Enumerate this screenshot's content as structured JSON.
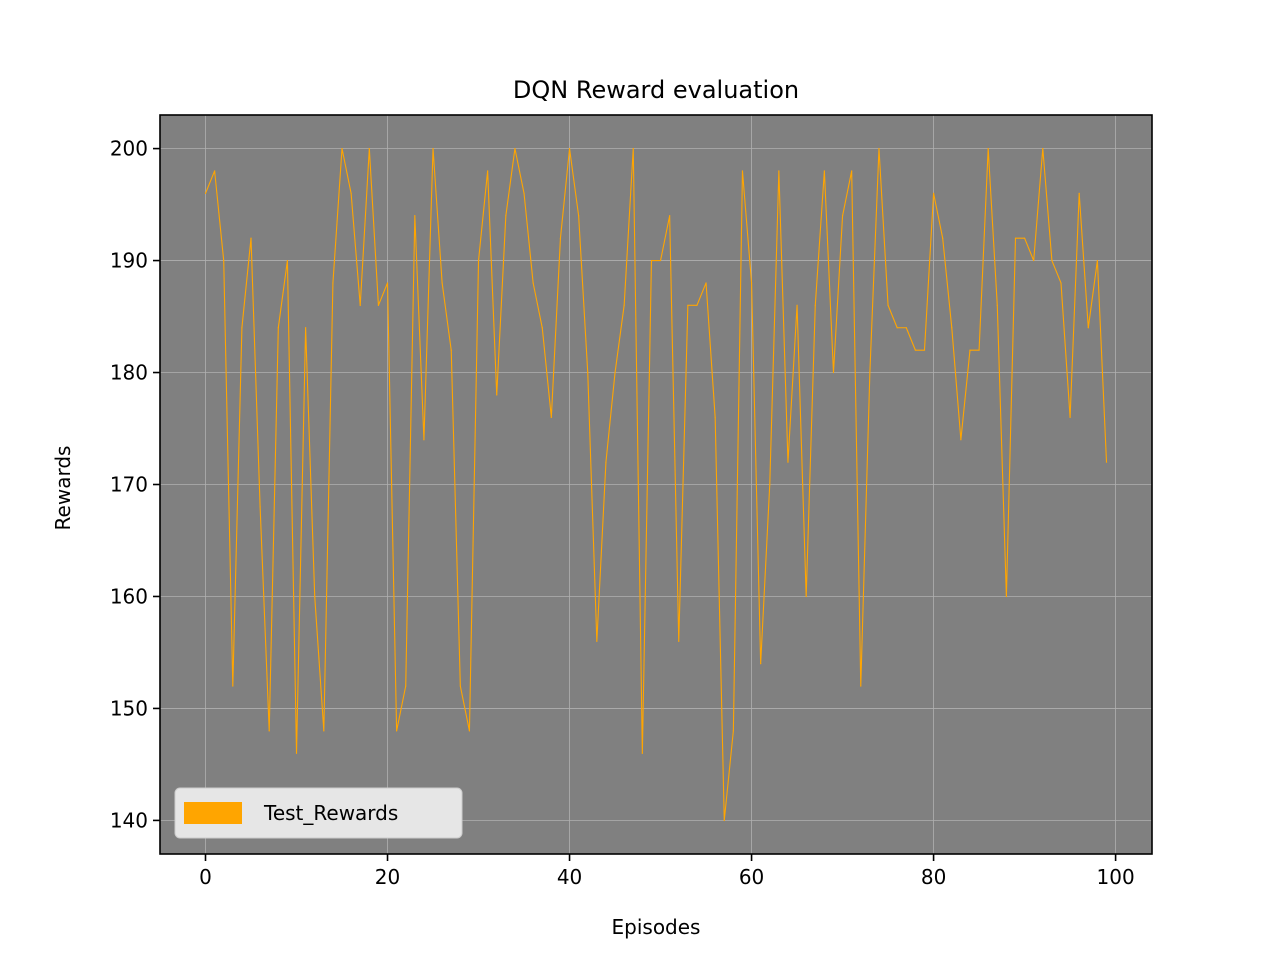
{
  "chart_data": {
    "type": "line",
    "title": "DQN Reward evaluation",
    "xlabel": "Episodes",
    "ylabel": "Rewards",
    "xlim": [
      -5,
      104
    ],
    "ylim": [
      137,
      203
    ],
    "xticks": [
      0,
      20,
      40,
      60,
      80,
      100
    ],
    "yticks": [
      140,
      150,
      160,
      170,
      180,
      190,
      200
    ],
    "grid": true,
    "legend_position": "lower-left",
    "colors": {
      "line": "#ffa500",
      "plot_background": "#808080",
      "grid": "#b0b0b0"
    },
    "series": [
      {
        "name": "Test_Rewards",
        "x": [
          0,
          1,
          2,
          3,
          4,
          5,
          6,
          7,
          8,
          9,
          10,
          11,
          12,
          13,
          14,
          15,
          16,
          17,
          18,
          19,
          20,
          21,
          22,
          23,
          24,
          25,
          26,
          27,
          28,
          29,
          30,
          31,
          32,
          33,
          34,
          35,
          36,
          37,
          38,
          39,
          40,
          41,
          42,
          43,
          44,
          45,
          46,
          47,
          48,
          49,
          50,
          51,
          52,
          53,
          54,
          55,
          56,
          57,
          58,
          59,
          60,
          61,
          62,
          63,
          64,
          65,
          66,
          67,
          68,
          69,
          70,
          71,
          72,
          73,
          74,
          75,
          76,
          77,
          78,
          79,
          80,
          81,
          82,
          83,
          84,
          85,
          86,
          87,
          88,
          89,
          90,
          91,
          92,
          93,
          94,
          95,
          96,
          97,
          98,
          99
        ],
        "values": [
          196,
          198,
          190,
          152,
          184,
          192,
          168,
          148,
          184,
          190,
          146,
          184,
          160,
          148,
          188,
          200,
          196,
          186,
          200,
          186,
          188,
          148,
          152,
          194,
          174,
          200,
          188,
          182,
          152,
          148,
          190,
          198,
          178,
          194,
          200,
          196,
          188,
          184,
          176,
          192,
          200,
          194,
          180,
          156,
          172,
          180,
          186,
          200,
          146,
          190,
          190,
          194,
          156,
          186,
          186,
          188,
          176,
          140,
          148,
          198,
          188,
          154,
          170,
          198,
          172,
          186,
          160,
          186,
          198,
          180,
          194,
          198,
          152,
          180,
          200,
          186,
          184,
          184,
          182,
          182,
          196,
          192,
          184,
          174,
          182,
          182,
          200,
          186,
          160,
          192,
          192,
          190,
          200,
          190,
          188,
          176,
          196,
          184,
          190,
          172
        ]
      }
    ]
  }
}
